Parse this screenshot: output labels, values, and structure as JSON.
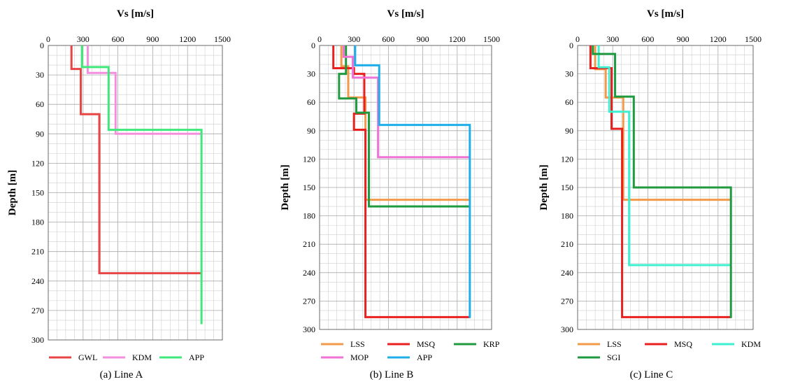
{
  "chart_data": [
    {
      "type": "line",
      "title": "Vs [m/s]",
      "xlabel": "Vs [m/s]",
      "ylabel": "Depth [m]",
      "caption": "(a) Line A",
      "xlim": [
        0,
        1500
      ],
      "ylim": [
        0,
        300
      ],
      "y_inverted": true,
      "x_axis_position": "top",
      "xticks": [
        "0",
        "300",
        "600",
        "900",
        "1200",
        "1500"
      ],
      "yticks": [
        "0",
        "30",
        "60",
        "90",
        "120",
        "150",
        "180",
        "210",
        "240",
        "270",
        "300"
      ],
      "grid": true,
      "legend_position": "bottom",
      "series": [
        {
          "name": "GWL",
          "color": "#e84545",
          "x": [
            200,
            200,
            280,
            280,
            440,
            440,
            1320
          ],
          "y": [
            0,
            24,
            24,
            70,
            70,
            232,
            232
          ]
        },
        {
          "name": "KDM",
          "color": "#f48fe0",
          "x": [
            340,
            340,
            580,
            580,
            1320
          ],
          "y": [
            0,
            28,
            28,
            90,
            90
          ]
        },
        {
          "name": "APP",
          "color": "#3ee87a",
          "x": [
            290,
            290,
            520,
            520,
            1320,
            1320
          ],
          "y": [
            0,
            22,
            22,
            86,
            86,
            284
          ]
        }
      ]
    },
    {
      "type": "line",
      "title": "Vs [m/s]",
      "xlabel": "Vs [m/s]",
      "ylabel": "Depth [m]",
      "caption": "(b) Line B",
      "xlim": [
        0,
        1500
      ],
      "ylim": [
        0,
        300
      ],
      "y_inverted": true,
      "x_axis_position": "top",
      "xticks": [
        "0",
        "300",
        "600",
        "900",
        "1200",
        "1500"
      ],
      "yticks": [
        "0",
        "30",
        "60",
        "90",
        "120",
        "150",
        "180",
        "210",
        "240",
        "270",
        "300"
      ],
      "grid": true,
      "legend_position": "bottom",
      "series": [
        {
          "name": "LSS",
          "color": "#f3994a",
          "x": [
            190,
            190,
            250,
            250,
            400,
            400,
            1310
          ],
          "y": [
            0,
            22,
            22,
            55,
            55,
            163,
            163
          ]
        },
        {
          "name": "MSQ",
          "color": "#e8201f",
          "x": [
            120,
            120,
            300,
            300,
            390,
            390,
            300,
            300,
            400,
            400,
            1310
          ],
          "y": [
            0,
            24,
            24,
            30,
            30,
            72,
            72,
            89,
            89,
            287,
            287
          ]
        },
        {
          "name": "KRP",
          "color": "#1f9b3f",
          "x": [
            230,
            230,
            170,
            170,
            320,
            320,
            430,
            430,
            1310
          ],
          "y": [
            0,
            30,
            30,
            56,
            56,
            71,
            71,
            170,
            170
          ]
        },
        {
          "name": "MOP",
          "color": "#f072d6",
          "x": [
            210,
            210,
            290,
            290,
            510,
            510,
            1310
          ],
          "y": [
            0,
            12,
            12,
            34,
            34,
            118,
            118
          ]
        },
        {
          "name": "APP",
          "color": "#1faee9",
          "x": [
            310,
            310,
            520,
            520,
            1310,
            1310
          ],
          "y": [
            0,
            21,
            21,
            84,
            84,
            288
          ]
        }
      ]
    },
    {
      "type": "line",
      "title": "Vs [m/s]",
      "xlabel": "Vs [m/s]",
      "ylabel": "Depth [m]",
      "caption": "(c) Line C",
      "xlim": [
        0,
        1500
      ],
      "ylim": [
        0,
        300
      ],
      "y_inverted": true,
      "x_axis_position": "top",
      "xticks": [
        "0",
        "300",
        "600",
        "900",
        "1200",
        "1500"
      ],
      "yticks": [
        "0",
        "30",
        "60",
        "90",
        "120",
        "150",
        "180",
        "210",
        "240",
        "270",
        "300"
      ],
      "grid": true,
      "legend_position": "bottom",
      "series": [
        {
          "name": "LSS",
          "color": "#f3994a",
          "x": [
            150,
            150,
            240,
            240,
            390,
            390,
            1310
          ],
          "y": [
            0,
            25,
            25,
            55,
            55,
            163,
            163
          ]
        },
        {
          "name": "MSQ",
          "color": "#e8201f",
          "x": [
            110,
            110,
            290,
            290,
            380,
            380,
            1310
          ],
          "y": [
            0,
            24,
            24,
            88,
            88,
            287,
            287
          ]
        },
        {
          "name": "KDM",
          "color": "#3ef0d2",
          "x": [
            180,
            180,
            270,
            270,
            440,
            440,
            1310
          ],
          "y": [
            0,
            23,
            23,
            70,
            70,
            232,
            232
          ]
        },
        {
          "name": "SGI",
          "color": "#1f9b3f",
          "x": [
            130,
            130,
            320,
            320,
            480,
            480,
            1310,
            1310
          ],
          "y": [
            0,
            9,
            9,
            54,
            54,
            150,
            150,
            288
          ]
        }
      ]
    }
  ]
}
